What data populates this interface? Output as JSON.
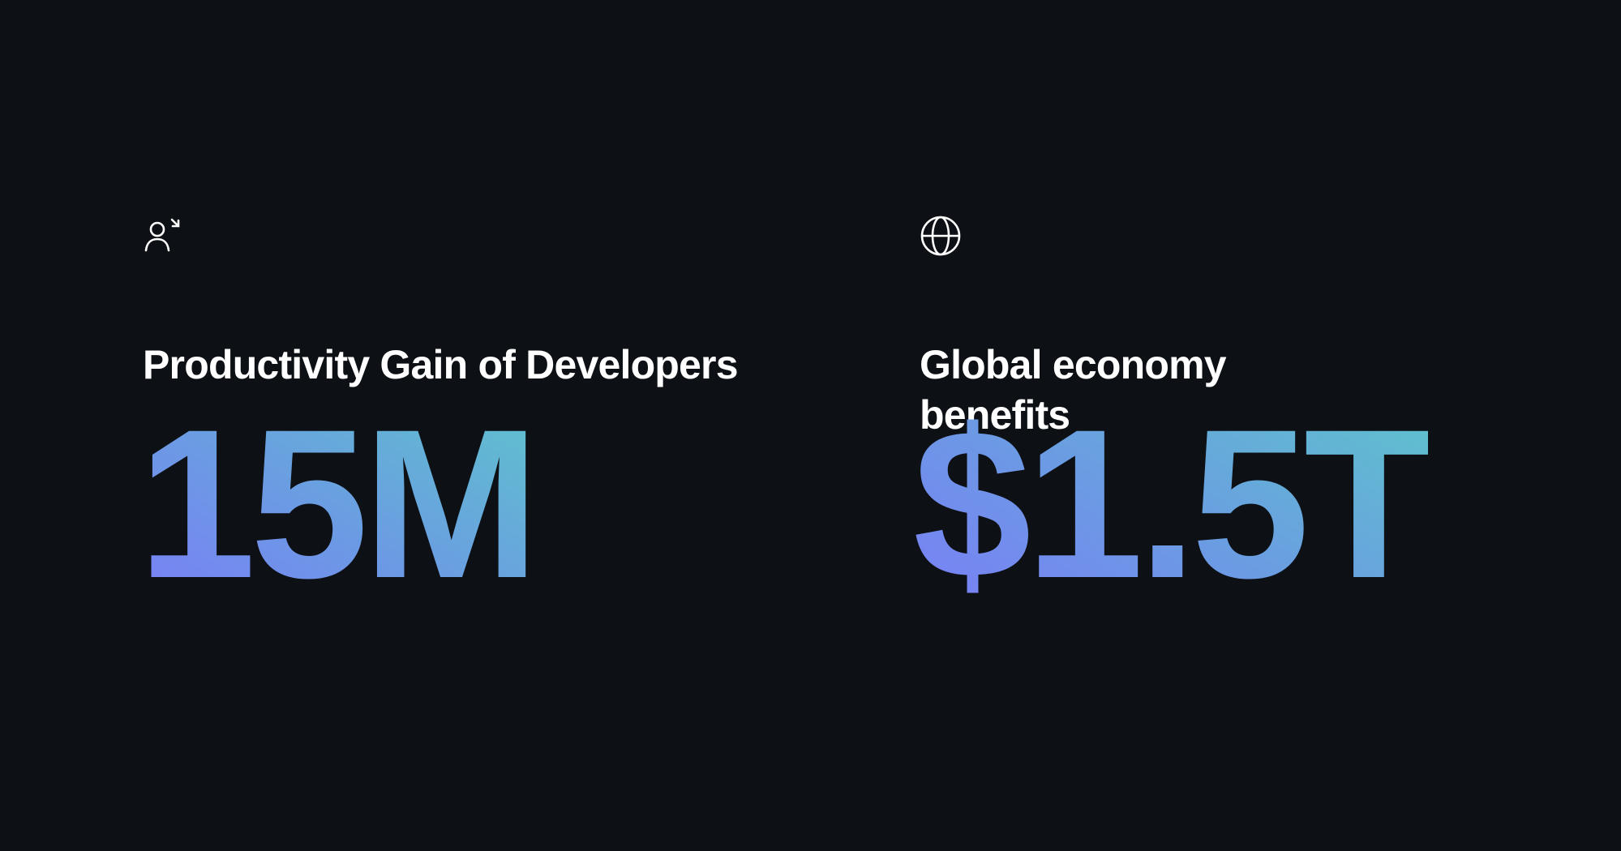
{
  "stats": [
    {
      "icon": "user-arrow-icon",
      "title": "Productivity Gain of Developers",
      "value": "15M"
    },
    {
      "icon": "globe-icon",
      "title": "Global economy benefits",
      "value": "$1.5T"
    }
  ],
  "colors": {
    "background": "#0d1015",
    "gradient_start": "#7a7ef7",
    "gradient_end": "#5ec3cc",
    "text": "#ffffff"
  }
}
